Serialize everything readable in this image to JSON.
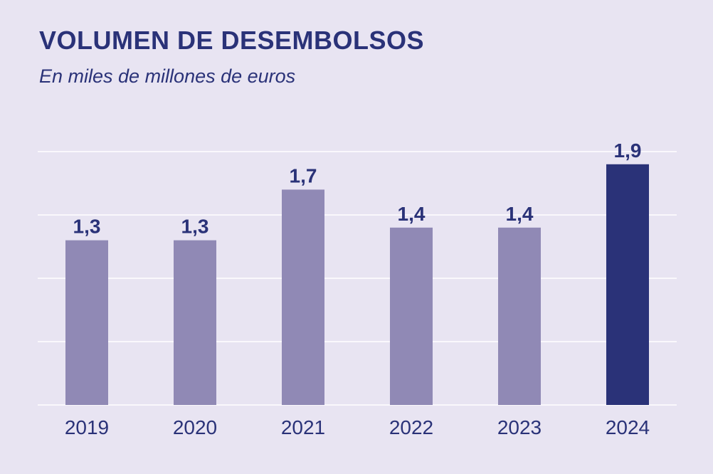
{
  "chart_data": {
    "type": "bar",
    "title": "VOLUMEN DE DESEMBOLSOS",
    "subtitle": "En miles de millones de euros",
    "categories": [
      "2019",
      "2020",
      "2021",
      "2022",
      "2023",
      "2024"
    ],
    "values": [
      1.3,
      1.3,
      1.7,
      1.4,
      1.4,
      1.9
    ],
    "data_labels": [
      "1,3",
      "1,3",
      "1,7",
      "1,4",
      "1,4",
      "1,9"
    ],
    "highlight_category": "2024",
    "xlabel": "",
    "ylabel": "",
    "ylim": [
      0,
      2
    ],
    "gridlines": [
      0,
      0.5,
      1,
      1.5,
      2
    ],
    "grid": true,
    "y_tick_labels_shown": false,
    "colors": {
      "background": "#e8e4f2",
      "bar": "#9089b5",
      "highlight": "#2a3278",
      "text": "#2a3278",
      "grid": "#ffffff"
    }
  }
}
